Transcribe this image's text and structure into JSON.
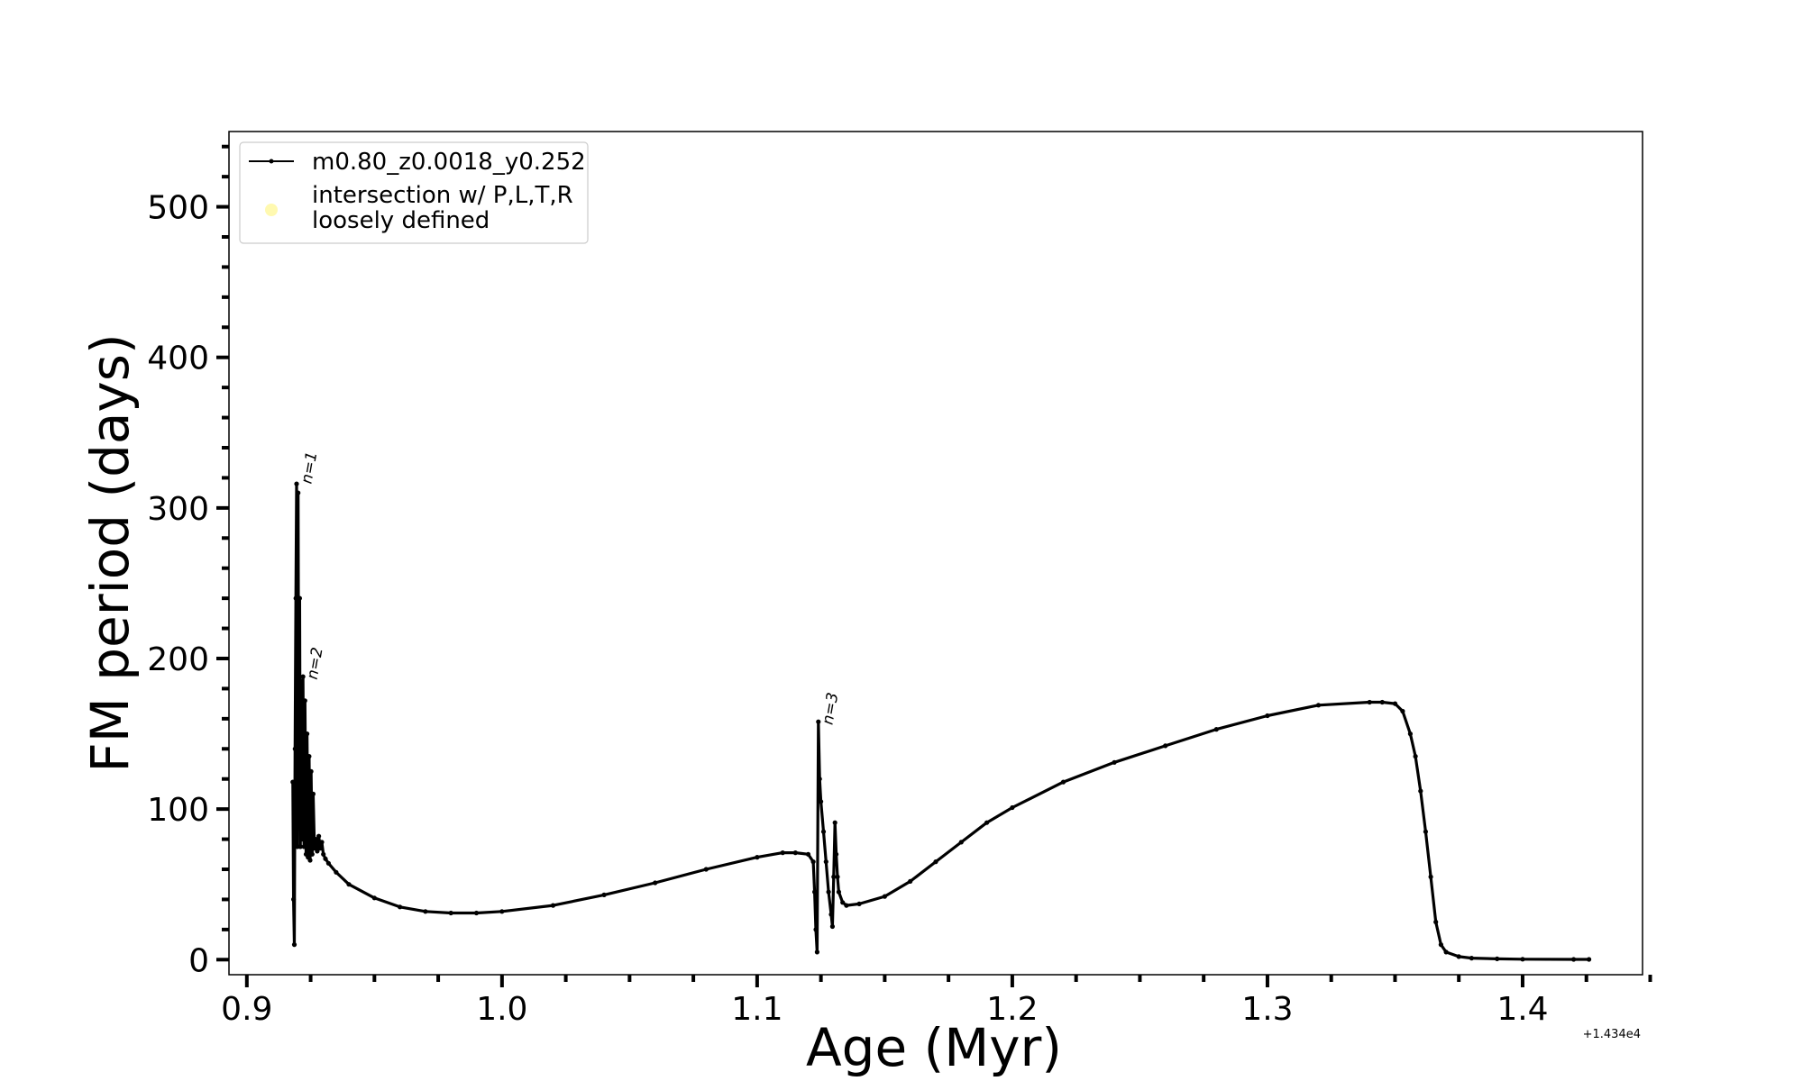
{
  "chart_data": {
    "type": "line",
    "xlabel": "Age (Myr)",
    "ylabel": "FM period (days)",
    "x_offset_label": "+1.434e4",
    "xlim": [
      0.893,
      1.447
    ],
    "ylim": [
      -10,
      550
    ],
    "x_ticks": [
      0.9,
      1.0,
      1.1,
      1.2,
      1.3,
      1.4
    ],
    "x_tick_labels": [
      "0.9",
      "1.0",
      "1.1",
      "1.2",
      "1.3",
      "1.4"
    ],
    "y_ticks": [
      0,
      100,
      200,
      300,
      400,
      500
    ],
    "y_tick_labels": [
      "0",
      "100",
      "200",
      "300",
      "400",
      "500"
    ],
    "legend_position": "top-left",
    "legend": [
      {
        "label": "m0.80_z0.0018_y0.252",
        "marker": "line-dot",
        "color": "#000000"
      },
      {
        "label_lines": [
          "intersection w/ P,L,T,R",
          "loosely defined"
        ],
        "marker": "circle",
        "color": "#fff9b0"
      }
    ],
    "annotations": [
      {
        "text": "n=1",
        "x": 0.9203,
        "y": 318
      },
      {
        "text": "n=2",
        "x": 0.9225,
        "y": 188
      },
      {
        "text": "n=3",
        "x": 1.1245,
        "y": 158
      }
    ],
    "series": [
      {
        "name": "m0.80_z0.0018_y0.252",
        "color": "#000000",
        "x": [
          0.918,
          0.9183,
          0.9186,
          0.9189,
          0.9192,
          0.9195,
          0.9198,
          0.9201,
          0.9204,
          0.9207,
          0.921,
          0.9213,
          0.9216,
          0.922,
          0.9224,
          0.9228,
          0.9232,
          0.9236,
          0.924,
          0.9244,
          0.9248,
          0.9252,
          0.9256,
          0.926,
          0.9265,
          0.927,
          0.9276,
          0.9282,
          0.9288,
          0.9294,
          0.93,
          0.9308,
          0.932,
          0.935,
          0.94,
          0.95,
          0.96,
          0.97,
          0.98,
          0.99,
          1.0,
          1.02,
          1.04,
          1.06,
          1.08,
          1.1,
          1.11,
          1.115,
          1.12,
          1.122,
          1.1225,
          1.123,
          1.1235,
          1.124,
          1.1245,
          1.125,
          1.126,
          1.127,
          1.128,
          1.129,
          1.1295,
          1.13,
          1.1305,
          1.131,
          1.1315,
          1.132,
          1.1335,
          1.135,
          1.14,
          1.15,
          1.16,
          1.17,
          1.18,
          1.19,
          1.2,
          1.22,
          1.24,
          1.26,
          1.28,
          1.3,
          1.32,
          1.34,
          1.345,
          1.35,
          1.353,
          1.356,
          1.358,
          1.36,
          1.362,
          1.364,
          1.366,
          1.368,
          1.37,
          1.375,
          1.38,
          1.39,
          1.4,
          1.42,
          1.426
        ],
        "values": [
          118,
          40,
          10,
          140,
          240,
          316,
          75,
          310,
          90,
          240,
          75,
          185,
          80,
          188,
          75,
          172,
          70,
          150,
          68,
          135,
          66,
          125,
          70,
          110,
          74,
          80,
          72,
          82,
          74,
          78,
          70,
          67,
          64,
          58,
          50,
          41,
          35,
          32,
          31,
          31,
          32,
          36,
          43,
          51,
          60,
          68,
          71,
          71,
          70,
          65,
          45,
          20,
          5,
          158,
          120,
          105,
          85,
          65,
          45,
          30,
          22,
          55,
          91,
          70,
          55,
          45,
          38,
          36,
          37,
          42,
          52,
          65,
          78,
          91,
          101,
          118,
          131,
          142,
          153,
          162,
          169,
          171,
          171,
          170,
          165,
          150,
          135,
          112,
          85,
          55,
          25,
          10,
          5,
          2,
          1,
          0.5,
          0.3,
          0.2,
          0.2
        ]
      }
    ]
  }
}
